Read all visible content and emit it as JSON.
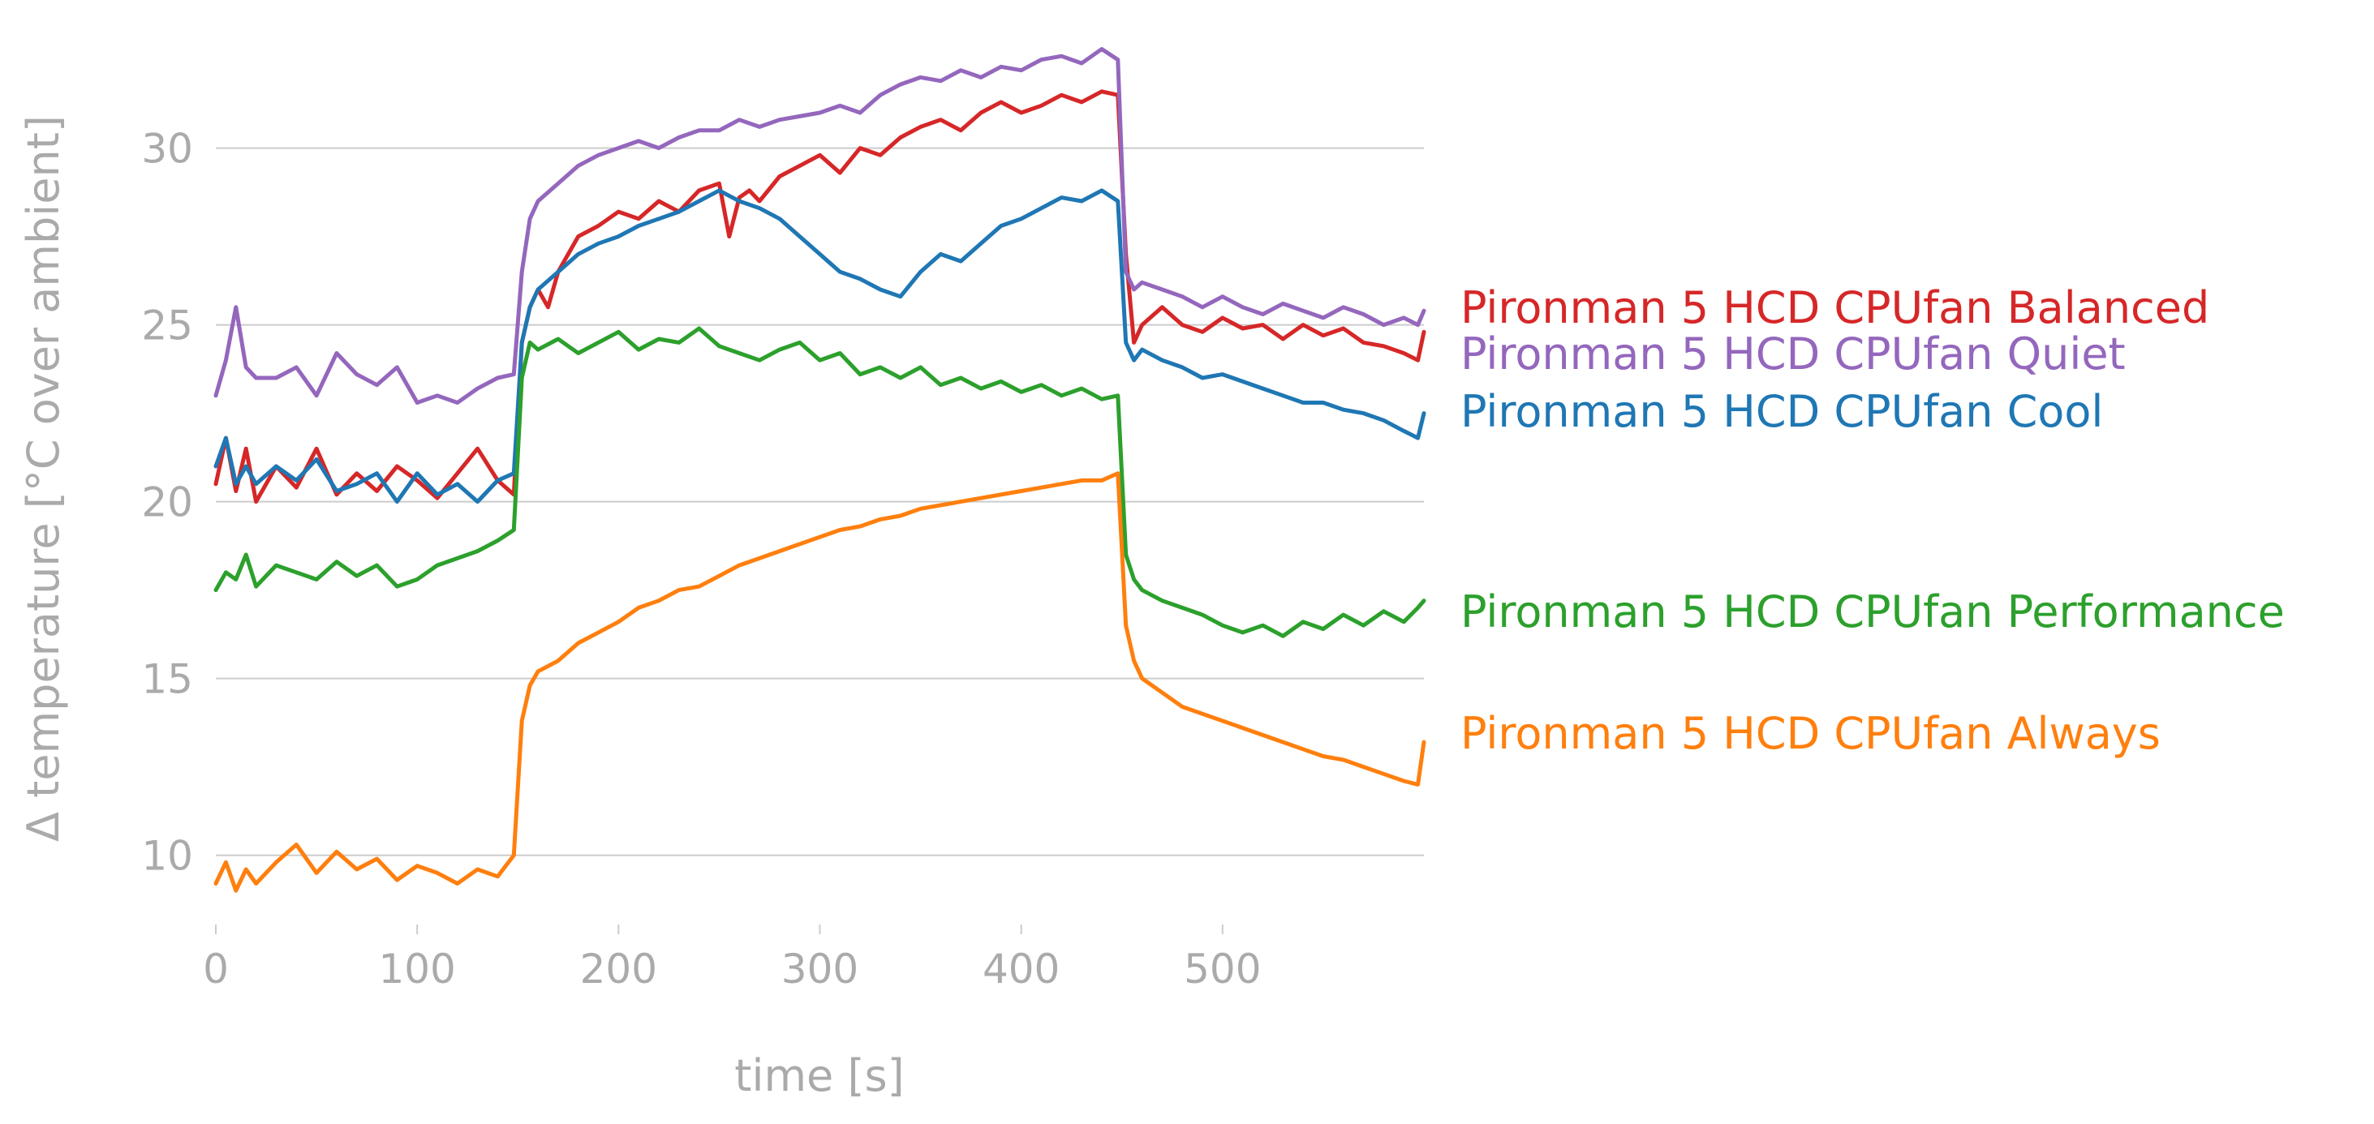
{
  "chart_data": {
    "type": "line",
    "title": "",
    "xlabel": "time [s]",
    "ylabel": "Δ temperature [°C over ambient]",
    "xlim": [
      0,
      600
    ],
    "ylim": [
      8.5,
      33.5
    ],
    "xticks": [
      0,
      100,
      200,
      300,
      400,
      500
    ],
    "yticks": [
      10,
      15,
      20,
      25,
      30
    ],
    "grid": "horizontal",
    "legend": "right, labels at line ends",
    "series": [
      {
        "name": "Pironman 5 HCD CPUfan Balanced",
        "color": "#d62728",
        "x": [
          0,
          5,
          10,
          15,
          20,
          30,
          40,
          50,
          60,
          70,
          80,
          90,
          100,
          110,
          120,
          130,
          140,
          148,
          152,
          156,
          160,
          165,
          170,
          175,
          180,
          190,
          200,
          210,
          220,
          230,
          240,
          250,
          255,
          260,
          265,
          270,
          280,
          290,
          300,
          310,
          320,
          330,
          340,
          350,
          360,
          370,
          380,
          390,
          400,
          410,
          420,
          430,
          440,
          448,
          452,
          456,
          460,
          470,
          480,
          490,
          500,
          510,
          520,
          530,
          540,
          550,
          560,
          570,
          580,
          590,
          597,
          600
        ],
        "values": [
          20.5,
          21.8,
          20.3,
          21.5,
          20.0,
          21.0,
          20.4,
          21.5,
          20.2,
          20.8,
          20.3,
          21.0,
          20.6,
          20.1,
          20.8,
          21.5,
          20.6,
          20.2,
          24.5,
          25.5,
          26.0,
          25.5,
          26.5,
          27.0,
          27.5,
          27.8,
          28.2,
          28.0,
          28.5,
          28.2,
          28.8,
          29.0,
          27.5,
          28.6,
          28.8,
          28.5,
          29.2,
          29.5,
          29.8,
          29.3,
          30.0,
          29.8,
          30.3,
          30.6,
          30.8,
          30.5,
          31.0,
          31.3,
          31.0,
          31.2,
          31.5,
          31.3,
          31.6,
          31.5,
          27.0,
          24.5,
          25.0,
          25.5,
          25.0,
          24.8,
          25.2,
          24.9,
          25.0,
          24.6,
          25.0,
          24.7,
          24.9,
          24.5,
          24.4,
          24.2,
          24.0,
          24.8
        ]
      },
      {
        "name": "Pironman 5 HCD CPUfan Quiet",
        "color": "#9467bd",
        "x": [
          0,
          5,
          10,
          15,
          20,
          30,
          40,
          50,
          60,
          70,
          80,
          90,
          100,
          110,
          120,
          130,
          140,
          148,
          152,
          156,
          160,
          170,
          180,
          190,
          200,
          210,
          220,
          230,
          240,
          250,
          260,
          270,
          280,
          290,
          300,
          310,
          320,
          330,
          340,
          350,
          360,
          370,
          380,
          390,
          400,
          410,
          420,
          430,
          440,
          448,
          452,
          456,
          460,
          470,
          480,
          490,
          500,
          510,
          520,
          530,
          540,
          550,
          560,
          570,
          580,
          590,
          597,
          600
        ],
        "values": [
          23.0,
          24.0,
          25.5,
          23.8,
          23.5,
          23.5,
          23.8,
          23.0,
          24.2,
          23.6,
          23.3,
          23.8,
          22.8,
          23.0,
          22.8,
          23.2,
          23.5,
          23.6,
          26.5,
          28.0,
          28.5,
          29.0,
          29.5,
          29.8,
          30.0,
          30.2,
          30.0,
          30.3,
          30.5,
          30.5,
          30.8,
          30.6,
          30.8,
          30.9,
          31.0,
          31.2,
          31.0,
          31.5,
          31.8,
          32.0,
          31.9,
          32.2,
          32.0,
          32.3,
          32.2,
          32.5,
          32.6,
          32.4,
          32.8,
          32.5,
          26.5,
          26.0,
          26.2,
          26.0,
          25.8,
          25.5,
          25.8,
          25.5,
          25.3,
          25.6,
          25.4,
          25.2,
          25.5,
          25.3,
          25.0,
          25.2,
          25.0,
          25.4
        ]
      },
      {
        "name": "Pironman 5 HCD CPUfan Cool",
        "color": "#1f77b4",
        "x": [
          0,
          5,
          10,
          15,
          20,
          30,
          40,
          50,
          60,
          70,
          80,
          90,
          100,
          110,
          120,
          130,
          140,
          148,
          152,
          156,
          160,
          170,
          180,
          190,
          200,
          210,
          220,
          230,
          240,
          250,
          260,
          270,
          280,
          290,
          300,
          310,
          320,
          330,
          340,
          350,
          360,
          370,
          380,
          390,
          400,
          410,
          420,
          430,
          440,
          448,
          452,
          456,
          460,
          470,
          480,
          490,
          500,
          510,
          520,
          530,
          540,
          550,
          560,
          570,
          580,
          590,
          597,
          600
        ],
        "values": [
          21.0,
          21.8,
          20.5,
          21.0,
          20.5,
          21.0,
          20.6,
          21.2,
          20.3,
          20.5,
          20.8,
          20.0,
          20.8,
          20.2,
          20.5,
          20.0,
          20.6,
          20.8,
          24.5,
          25.5,
          26.0,
          26.5,
          27.0,
          27.3,
          27.5,
          27.8,
          28.0,
          28.2,
          28.5,
          28.8,
          28.5,
          28.3,
          28.0,
          27.5,
          27.0,
          26.5,
          26.3,
          26.0,
          25.8,
          26.5,
          27.0,
          26.8,
          27.3,
          27.8,
          28.0,
          28.3,
          28.6,
          28.5,
          28.8,
          28.5,
          24.5,
          24.0,
          24.3,
          24.0,
          23.8,
          23.5,
          23.6,
          23.4,
          23.2,
          23.0,
          22.8,
          22.8,
          22.6,
          22.5,
          22.3,
          22.0,
          21.8,
          22.5
        ]
      },
      {
        "name": "Pironman 5 HCD CPUfan Performance",
        "color": "#2ca02c",
        "x": [
          0,
          5,
          10,
          15,
          20,
          30,
          40,
          50,
          60,
          70,
          80,
          90,
          100,
          110,
          120,
          130,
          140,
          148,
          152,
          156,
          160,
          170,
          180,
          190,
          200,
          210,
          220,
          230,
          240,
          250,
          260,
          270,
          280,
          290,
          300,
          310,
          320,
          330,
          340,
          350,
          360,
          370,
          380,
          390,
          400,
          410,
          420,
          430,
          440,
          448,
          452,
          456,
          460,
          470,
          480,
          490,
          500,
          510,
          520,
          530,
          540,
          550,
          560,
          570,
          580,
          590,
          597,
          600
        ],
        "values": [
          17.5,
          18.0,
          17.8,
          18.5,
          17.6,
          18.2,
          18.0,
          17.8,
          18.3,
          17.9,
          18.2,
          17.6,
          17.8,
          18.2,
          18.4,
          18.6,
          18.9,
          19.2,
          23.5,
          24.5,
          24.3,
          24.6,
          24.2,
          24.5,
          24.8,
          24.3,
          24.6,
          24.5,
          24.9,
          24.4,
          24.2,
          24.0,
          24.3,
          24.5,
          24.0,
          24.2,
          23.6,
          23.8,
          23.5,
          23.8,
          23.3,
          23.5,
          23.2,
          23.4,
          23.1,
          23.3,
          23.0,
          23.2,
          22.9,
          23.0,
          18.5,
          17.8,
          17.5,
          17.2,
          17.0,
          16.8,
          16.5,
          16.3,
          16.5,
          16.2,
          16.6,
          16.4,
          16.8,
          16.5,
          16.9,
          16.6,
          17.0,
          17.2
        ]
      },
      {
        "name": "Pironman 5 HCD CPUfan Always",
        "color": "#ff7f0e",
        "x": [
          0,
          5,
          10,
          15,
          20,
          30,
          40,
          50,
          60,
          70,
          80,
          90,
          100,
          110,
          120,
          130,
          140,
          148,
          152,
          156,
          160,
          170,
          180,
          190,
          200,
          210,
          220,
          230,
          240,
          250,
          260,
          270,
          280,
          290,
          300,
          310,
          320,
          330,
          340,
          350,
          360,
          370,
          380,
          390,
          400,
          410,
          420,
          430,
          440,
          448,
          452,
          456,
          460,
          470,
          480,
          490,
          500,
          510,
          520,
          530,
          540,
          550,
          560,
          570,
          580,
          590,
          597,
          600
        ],
        "values": [
          9.2,
          9.8,
          9.0,
          9.6,
          9.2,
          9.8,
          10.3,
          9.5,
          10.1,
          9.6,
          9.9,
          9.3,
          9.7,
          9.5,
          9.2,
          9.6,
          9.4,
          10.0,
          13.8,
          14.8,
          15.2,
          15.5,
          16.0,
          16.3,
          16.6,
          17.0,
          17.2,
          17.5,
          17.6,
          17.9,
          18.2,
          18.4,
          18.6,
          18.8,
          19.0,
          19.2,
          19.3,
          19.5,
          19.6,
          19.8,
          19.9,
          20.0,
          20.1,
          20.2,
          20.3,
          20.4,
          20.5,
          20.6,
          20.6,
          20.8,
          16.5,
          15.5,
          15.0,
          14.6,
          14.2,
          14.0,
          13.8,
          13.6,
          13.4,
          13.2,
          13.0,
          12.8,
          12.7,
          12.5,
          12.3,
          12.1,
          12.0,
          13.2
        ]
      }
    ]
  }
}
